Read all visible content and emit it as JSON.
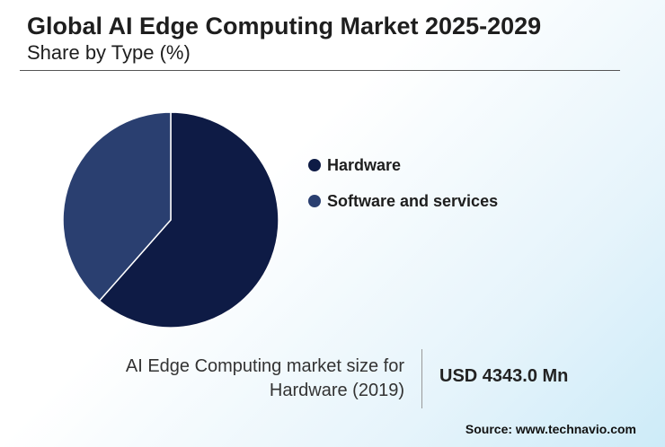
{
  "header": {
    "title": "Global AI Edge Computing Market 2025-2029",
    "subtitle": "Share by Type (%)"
  },
  "chart_data": {
    "type": "pie",
    "categories": [
      "Hardware",
      "Software and services"
    ],
    "values": [
      61.5,
      38.5
    ],
    "colors": [
      "#0e1b45",
      "#2a3f70"
    ],
    "legend_position": "right"
  },
  "stat": {
    "label_line1": "AI Edge Computing market size for",
    "label_line2": "Hardware (2019)",
    "value": "USD 4343.0 Mn"
  },
  "source": "Source: www.technavio.com"
}
